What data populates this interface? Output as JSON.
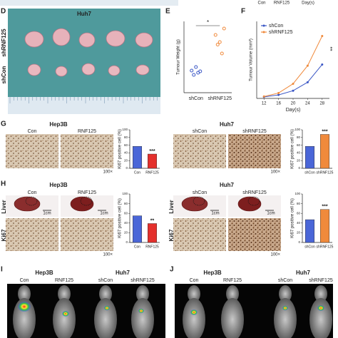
{
  "top_strip": {
    "columns": [
      "Con",
      "RNF125"
    ],
    "xlabel": "Day(s)"
  },
  "panel_d": {
    "label": "D",
    "title": "Huh7",
    "rows": [
      "shRNF125",
      "shCon"
    ]
  },
  "panel_g": {
    "label": "G",
    "groups": [
      {
        "title": "Hep3B",
        "columns": [
          "Con",
          "RNF125"
        ]
      },
      {
        "title": "Huh7",
        "columns": [
          "shCon",
          "shRNF125"
        ]
      }
    ],
    "magnification": "100×"
  },
  "panel_h": {
    "label": "H",
    "groups": [
      {
        "title": "Hep3B",
        "columns": [
          "Con",
          "RNF125"
        ]
      },
      {
        "title": "Huh7",
        "columns": [
          "shCon",
          "shRNF125"
        ]
      }
    ],
    "rows": [
      "Liver",
      "Ki67"
    ],
    "scale": "1cm",
    "magnification": "100×"
  },
  "panel_i": {
    "label": "I",
    "groups": [
      {
        "title": "Hep3B",
        "columns": [
          "Con",
          "RNF125"
        ]
      },
      {
        "title": "Huh7",
        "columns": [
          "shCon",
          "shRNF125"
        ]
      }
    ]
  },
  "panel_j": {
    "label": "J",
    "groups": [
      {
        "title": "Hep3B",
        "columns": [
          "Con",
          "RNF125"
        ]
      },
      {
        "title": "Huh7",
        "columns": [
          "shCon",
          "shRNF125"
        ]
      }
    ]
  },
  "chart_data": [
    {
      "panel": "E",
      "type": "scatter",
      "ylabel": "Tumour Weight (g)",
      "categories": [
        "shCon",
        "shRNF125"
      ],
      "colors": [
        "#3a56c5",
        "#f08a3c"
      ],
      "points": [
        [
          0.62,
          0.5,
          0.72,
          0.56,
          0.6
        ],
        [
          1.62,
          1.35,
          1.42,
          1.1,
          1.8
        ]
      ],
      "ylim": [
        0,
        2
      ],
      "annotation": "*"
    },
    {
      "panel": "F",
      "type": "line",
      "xlabel": "Day(s)",
      "ylabel": "Tumour Volume (mm³)",
      "x": [
        12,
        16,
        20,
        24,
        28
      ],
      "xlim": [
        10,
        30
      ],
      "xticks": [
        12,
        16,
        20,
        24,
        28
      ],
      "ylim": [
        0,
        2000
      ],
      "legend": "upper left",
      "annotation": "**",
      "series": [
        {
          "name": "shCon",
          "color": "#3a56c5",
          "values": [
            40,
            90,
            200,
            420,
            880
          ]
        },
        {
          "name": "shRNF125",
          "color": "#f08a3c",
          "values": [
            50,
            140,
            380,
            850,
            1620
          ]
        }
      ]
    },
    {
      "type": "bar",
      "ylabel": "Ki67 positive cell (%)",
      "categories": [
        "Con",
        "RNF125"
      ],
      "colors": [
        "#4a66d8",
        "#e4302c"
      ],
      "values": [
        57,
        37
      ],
      "ylim": [
        0,
        100
      ],
      "yticks": [
        0,
        20,
        40,
        60,
        80,
        100
      ],
      "annotation": "***"
    },
    {
      "type": "bar",
      "ylabel": "Ki67 positive cell (%)",
      "categories": [
        "shCon",
        "shRNF125"
      ],
      "colors": [
        "#4a66d8",
        "#f08a3c"
      ],
      "values": [
        57,
        88
      ],
      "ylim": [
        0,
        100
      ],
      "yticks": [
        0,
        20,
        40,
        60,
        80,
        100
      ],
      "annotation": "***"
    },
    {
      "type": "bar",
      "ylabel": "Ki67 positive cell (%)",
      "categories": [
        "Con",
        "RNF125"
      ],
      "colors": [
        "#4a66d8",
        "#e4302c"
      ],
      "values": [
        55,
        39
      ],
      "ylim": [
        0,
        100
      ],
      "yticks": [
        0,
        20,
        40,
        60,
        80,
        100
      ],
      "annotation": "**"
    },
    {
      "type": "bar",
      "ylabel": "Ki67 positive cell (%)",
      "categories": [
        "shCon",
        "shRNF125"
      ],
      "colors": [
        "#4a66d8",
        "#f08a3c"
      ],
      "values": [
        47,
        68
      ],
      "ylim": [
        0,
        100
      ],
      "yticks": [
        0,
        20,
        40,
        60,
        80,
        100
      ],
      "annotation": "***"
    }
  ]
}
